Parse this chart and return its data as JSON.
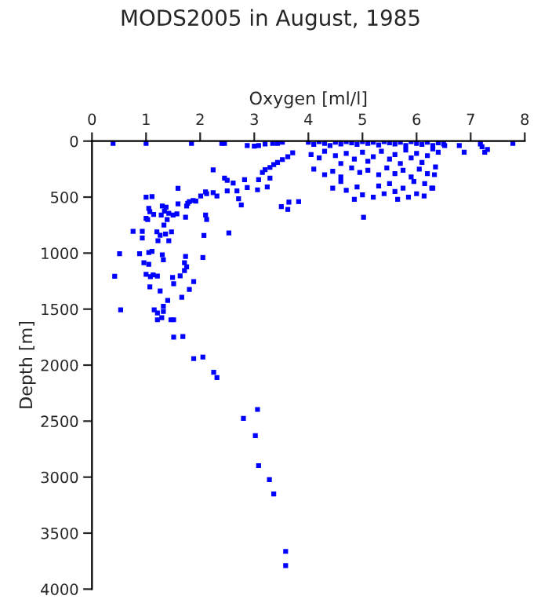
{
  "chart_data": {
    "type": "scatter",
    "title": "MODS2005 in August, 1985",
    "xlabel": "Oxygen [ml/l]",
    "ylabel": "Depth [m]",
    "xlim": [
      0,
      8
    ],
    "xticks": [
      0,
      1,
      2,
      3,
      4,
      5,
      6,
      7,
      8
    ],
    "ylim": [
      4000,
      0
    ],
    "yticks": [
      0,
      500,
      1000,
      1500,
      2000,
      2500,
      3000,
      3500,
      4000
    ],
    "grid": false,
    "legend": false,
    "marker": "square",
    "series": [
      {
        "color": "#0000ff",
        "x": [
          3.08,
          3.28,
          3.36,
          3.58,
          3.58,
          3.06,
          2.8,
          3.02,
          2.25,
          2.31,
          1.88,
          2.05,
          1.51,
          1.68,
          0.53,
          1.15,
          1.21,
          1.32,
          1.32,
          1.29,
          1.21,
          1.46,
          1.51,
          1.26,
          1.4,
          1.66,
          1.8,
          1.88,
          1.07,
          0.42,
          1.0,
          1.08,
          1.13,
          1.21,
          1.49,
          1.51,
          1.63,
          1.71,
          1.75,
          0.51,
          0.88,
          1.05,
          1.11,
          0.96,
          1.05,
          1.32,
          1.3,
          1.73,
          1.71,
          2.05,
          1.0,
          1.11,
          1.05,
          1.07,
          1.03,
          1.0,
          1.14,
          1.3,
          1.37,
          1.34,
          1.28,
          1.42,
          1.39,
          1.33,
          1.5,
          1.59,
          1.57,
          1.73,
          1.75,
          0.76,
          0.93,
          0.93,
          1.2,
          1.26,
          1.22,
          1.36,
          1.47,
          1.42,
          2.07,
          2.53,
          2.12,
          2.1,
          1.87,
          1.8,
          1.77,
          1.92,
          2.01,
          2.12,
          2.24,
          2.31,
          1.59,
          2.1,
          2.45,
          2.5,
          2.61,
          2.5,
          2.68,
          2.82,
          2.87,
          2.76,
          3.06,
          3.08,
          2.71,
          3.24,
          3.29,
          3.5,
          3.62,
          3.64,
          3.82,
          3.15,
          3.2,
          3.29,
          3.36,
          3.43,
          3.52,
          3.62,
          3.71,
          2.24,
          3.0,
          2.87,
          3.08,
          0.39,
          1.0,
          1.84,
          2.4,
          2.45,
          3.2,
          3.34,
          3.43,
          3.52,
          4.0,
          4.1,
          4.2,
          4.3,
          4.4,
          4.5,
          4.6,
          4.7,
          4.8,
          4.9,
          5.0,
          5.1,
          5.2,
          5.3,
          5.4,
          5.5,
          5.6,
          5.7,
          5.8,
          5.9,
          6.0,
          6.1,
          6.2,
          6.3,
          6.4,
          6.5,
          4.05,
          4.2,
          4.3,
          4.5,
          4.6,
          4.7,
          4.85,
          5.0,
          5.1,
          5.2,
          5.35,
          5.5,
          5.6,
          5.7,
          5.8,
          5.9,
          6.0,
          6.1,
          6.2,
          6.3,
          6.4,
          4.1,
          4.3,
          4.45,
          4.6,
          4.8,
          4.95,
          5.1,
          5.3,
          5.45,
          5.6,
          5.75,
          5.9,
          6.05,
          6.2,
          6.35,
          4.45,
          4.7,
          4.9,
          5.0,
          5.2,
          5.4,
          5.5,
          5.6,
          5.75,
          5.85,
          6.0,
          6.15,
          6.3,
          5.3,
          5.95,
          4.6,
          4.85,
          5.65,
          5.02,
          6.14,
          6.28,
          6.33,
          6.52,
          6.79,
          6.88,
          7.21,
          7.26,
          7.31,
          7.18,
          7.78
        ],
        "values": [
          2897,
          3023,
          3150,
          3663,
          3790,
          2396,
          2476,
          2630,
          2064,
          2111,
          1942,
          1928,
          1750,
          1745,
          1507,
          1507,
          1535,
          1474,
          1521,
          1577,
          1595,
          1595,
          1595,
          1338,
          1423,
          1395,
          1324,
          1254,
          1301,
          1207,
          1190,
          1210,
          1195,
          1205,
          1217,
          1273,
          1203,
          1156,
          1123,
          1006,
          1006,
          995,
          985,
          1086,
          1100,
          1060,
          1015,
          1030,
          1086,
          1039,
          500,
          495,
          600,
          630,
          700,
          690,
          655,
          580,
          590,
          625,
          660,
          645,
          700,
          750,
          660,
          560,
          650,
          680,
          580,
          805,
          805,
          865,
          810,
          840,
          890,
          830,
          810,
          890,
          842,
          820,
          700,
          660,
          530,
          540,
          555,
          535,
          490,
          470,
          460,
          490,
          421,
          454,
          330,
          350,
          375,
          445,
          445,
          345,
          415,
          570,
          435,
          345,
          515,
          410,
          330,
          585,
          610,
          545,
          540,
          280,
          255,
          235,
          210,
          190,
          165,
          140,
          105,
          257,
          45,
          40,
          40,
          20,
          20,
          20,
          20,
          20,
          25,
          20,
          20,
          10,
          10,
          30,
          5,
          20,
          40,
          10,
          25,
          5,
          15,
          30,
          5,
          20,
          10,
          35,
          5,
          15,
          25,
          10,
          40,
          5,
          20,
          30,
          10,
          40,
          15,
          25,
          120,
          150,
          90,
          130,
          200,
          110,
          160,
          100,
          180,
          140,
          90,
          160,
          120,
          200,
          80,
          150,
          110,
          190,
          130,
          70,
          100,
          250,
          300,
          270,
          320,
          240,
          280,
          260,
          300,
          240,
          290,
          260,
          320,
          250,
          290,
          230,
          420,
          440,
          410,
          480,
          500,
          470,
          380,
          450,
          420,
          500,
          470,
          380,
          420,
          400,
          360,
          360,
          520,
          520,
          680,
          490,
          420,
          300,
          40,
          40,
          100,
          50,
          100,
          75,
          25,
          20
        ]
      }
    ]
  }
}
